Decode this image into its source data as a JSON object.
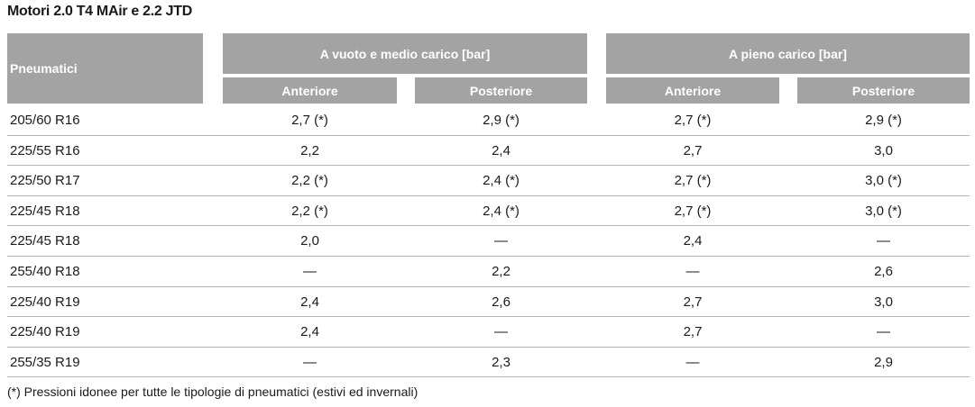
{
  "header": {
    "title": "Motori 2.0 T4 MAir e 2.2 JTD"
  },
  "table": {
    "groups": [
      "A vuoto e medio carico [bar]",
      "A pieno carico [bar]"
    ],
    "columns": [
      "Pneumatici",
      "Anteriore",
      "Posteriore",
      "Anteriore",
      "Posteriore"
    ],
    "rows": [
      [
        "205/60 R16",
        "2,7 (*)",
        "2,9 (*)",
        "2,7 (*)",
        "2,9 (*)"
      ],
      [
        "225/55 R16",
        "2,2",
        "2,4",
        "2,7",
        "3,0"
      ],
      [
        "225/50 R17",
        "2,2 (*)",
        "2,4 (*)",
        "2,7 (*)",
        "3,0 (*)"
      ],
      [
        "225/45 R18",
        "2,2 (*)",
        "2,4 (*)",
        "2,7 (*)",
        "3,0 (*)"
      ],
      [
        "225/45 R18",
        "2,0",
        "—",
        "2,4",
        "—"
      ],
      [
        "255/40 R18",
        "—",
        "2,2",
        "—",
        "2,6"
      ],
      [
        "225/40 R19",
        "2,4",
        "2,6",
        "2,7",
        "3,0"
      ],
      [
        "225/40 R19",
        "2,4",
        "—",
        "2,7",
        "—"
      ],
      [
        "255/35 R19",
        "—",
        "2,3",
        "—",
        "2,9"
      ]
    ]
  },
  "footnote": "(*) Pressioni idonee per tutte le tipologie di pneumatici (estivi ed invernali)"
}
